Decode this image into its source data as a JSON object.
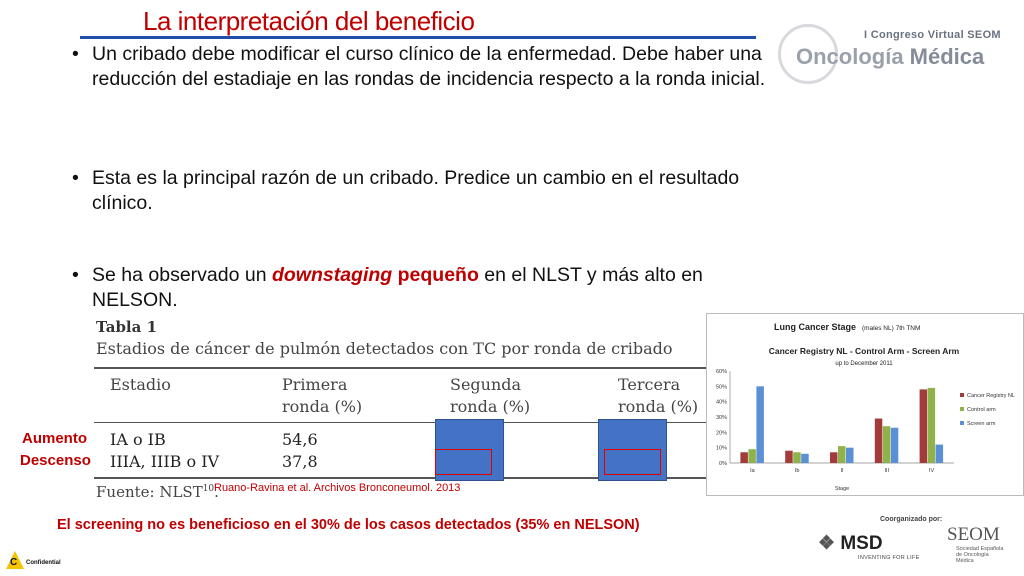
{
  "slide": {
    "title": "La interpretación del beneficio",
    "bullets": [
      {
        "text": "Un cribado debe modificar el curso clínico de la enfermedad. Debe haber una reducción del estadiaje en las rondas de incidencia respecto a la ronda inicial."
      },
      {
        "text": "Esta es la principal razón de un cribado. Predice un cambio en el resultado clínico."
      },
      {
        "prefix": "Se ha observado un ",
        "emph_italic": "downstaging",
        "emph": " pequeño",
        "suffix": " en el NLST y más alto en NELSON."
      }
    ],
    "bullet_char": "•",
    "label_aumento": "Aumento",
    "label_descenso": "Descenso",
    "reference": "Ruano-Ravina et al. Archivos Bronconeumol. 2013",
    "conclusion": "El screening no es beneficioso en el 30% de los casos detectados (35% en NELSON)"
  },
  "branding": {
    "congress": "I Congreso Virtual SEOM",
    "logo_part1": "Oncología",
    "logo_part2": " Médica",
    "organized_by": "Coorganizado por:",
    "msd": "MSD",
    "msd_tagline": "INVENTING FOR LIFE",
    "seom": "SEOM",
    "seom_sub": "Sociedad Española de Oncología Médica",
    "confidential": "Confidential",
    "conf_letter": "C"
  },
  "table": {
    "title": "Tabla 1",
    "caption": "Estadios de cáncer de pulmón detectados con TC por ronda de cribado",
    "headers": [
      {
        "line1": "Estadio",
        "line2": ""
      },
      {
        "line1": "Primera",
        "line2": "ronda (%)"
      },
      {
        "line1": "Segunda",
        "line2": "ronda (%)"
      },
      {
        "line1": "Tercera",
        "line2": "ronda (%)"
      }
    ],
    "rows": [
      {
        "stage": "IA o IB",
        "first": "54,6"
      },
      {
        "stage": "IIIA, IIIB o IV",
        "first": "37,8"
      }
    ],
    "source": "Fuente: NLST",
    "source_sup": "10",
    "source_end": "."
  },
  "chart_data": {
    "type": "bar",
    "title": "Lung Cancer Stage",
    "title_note": "(males NL) 7th TNM",
    "subtitle": "Cancer Registry NL - Control Arm - Screen Arm",
    "subsubtitle": "up to December 2011",
    "xlabel": "Stage",
    "categories": [
      "Ia",
      "Ib",
      "II",
      "III",
      "IV"
    ],
    "ylim": [
      0,
      60
    ],
    "ytick_labels": [
      "0%",
      "10%",
      "20%",
      "30%",
      "40%",
      "50%",
      "60%"
    ],
    "yticks": [
      0,
      10,
      20,
      30,
      40,
      50,
      60
    ],
    "series": [
      {
        "name": "Cancer Registry NL",
        "color": "#a33b3b",
        "values": [
          7,
          8,
          7,
          29,
          48
        ]
      },
      {
        "name": "Control arm",
        "color": "#8fb34a",
        "values": [
          9,
          7,
          11,
          24,
          49
        ]
      },
      {
        "name": "Screen arm",
        "color": "#5b8fd6",
        "values": [
          50,
          6,
          10,
          23,
          12
        ]
      }
    ],
    "legend_position": "right",
    "grid": false
  }
}
